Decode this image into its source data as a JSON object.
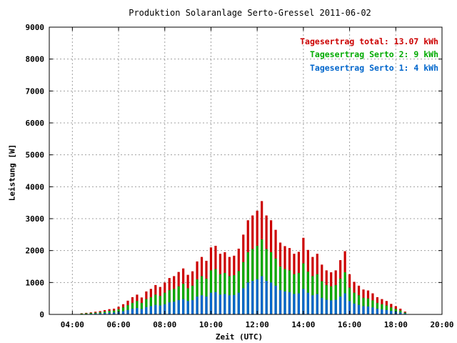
{
  "chart_data": {
    "type": "bar",
    "title": "Produktion Solaranlage Serto-Gressel 2011-06-02",
    "xlabel": "Zeit (UTC)",
    "ylabel": "Leistung [W]",
    "xlim": [
      3.0,
      20.0
    ],
    "ylim": [
      0,
      9000
    ],
    "yticks": [
      "0",
      "1000",
      "2000",
      "3000",
      "4000",
      "5000",
      "6000",
      "7000",
      "8000",
      "9000"
    ],
    "xticks": [
      "04:00",
      "06:00",
      "08:00",
      "10:00",
      "12:00",
      "14:00",
      "16:00",
      "18:00",
      "20:00"
    ],
    "grid": true,
    "legend_position": "top-right",
    "legend": [
      {
        "label": "Tagesertrag total: 13.07 kWh",
        "color": "#cc0000"
      },
      {
        "label": "Tagesertrag Serto 2: 9 kWh",
        "color": "#00aa00"
      },
      {
        "label": "Tagesertrag Serto 1: 4 kWh",
        "color": "#0066cc"
      }
    ],
    "series": [
      {
        "color": "#0066cc",
        "x": [
          4.4,
          4.6,
          4.8,
          5.0,
          5.2,
          5.4,
          5.6,
          5.8,
          6.0,
          6.2,
          6.4,
          6.6,
          6.8,
          7.0,
          7.2,
          7.4,
          7.6,
          7.8,
          8.0,
          8.2,
          8.4,
          8.6,
          8.8,
          9.0,
          9.2,
          9.4,
          9.6,
          9.8,
          10.0,
          10.2,
          10.4,
          10.6,
          10.8,
          11.0,
          11.2,
          11.4,
          11.6,
          11.8,
          12.0,
          12.2,
          12.4,
          12.6,
          12.8,
          13.0,
          13.2,
          13.4,
          13.6,
          13.8,
          14.0,
          14.2,
          14.4,
          14.6,
          14.8,
          15.0,
          15.2,
          15.4,
          15.6,
          15.8,
          16.0,
          16.2,
          16.4,
          16.6,
          16.8,
          17.0,
          17.2,
          17.4,
          17.6,
          17.8,
          18.0,
          18.2,
          18.4
        ],
        "values": [
          10,
          15,
          20,
          28,
          35,
          45,
          55,
          60,
          80,
          100,
          140,
          180,
          200,
          170,
          230,
          260,
          300,
          280,
          320,
          380,
          400,
          450,
          480,
          420,
          450,
          560,
          600,
          560,
          680,
          700,
          620,
          640,
          600,
          610,
          680,
          820,
          1000,
          1050,
          1100,
          1200,
          1050,
          1000,
          900,
          760,
          720,
          700,
          640,
          660,
          800,
          680,
          600,
          640,
          520,
          460,
          440,
          460,
          560,
          660,
          420,
          340,
          300,
          260,
          250,
          220,
          180,
          160,
          140,
          110,
          90,
          60,
          30
        ]
      },
      {
        "color": "#00aa00",
        "x": [
          4.4,
          4.6,
          4.8,
          5.0,
          5.2,
          5.4,
          5.6,
          5.8,
          6.0,
          6.2,
          6.4,
          6.6,
          6.8,
          7.0,
          7.2,
          7.4,
          7.6,
          7.8,
          8.0,
          8.2,
          8.4,
          8.6,
          8.8,
          9.0,
          9.2,
          9.4,
          9.6,
          9.8,
          10.0,
          10.2,
          10.4,
          10.6,
          10.8,
          11.0,
          11.2,
          11.4,
          11.6,
          11.8,
          12.0,
          12.2,
          12.4,
          12.6,
          12.8,
          13.0,
          13.2,
          13.4,
          13.6,
          13.8,
          14.0,
          14.2,
          14.4,
          14.6,
          14.8,
          15.0,
          15.2,
          15.4,
          15.6,
          15.8,
          16.0,
          16.2,
          16.4,
          16.6,
          16.8,
          17.0,
          17.2,
          17.4,
          17.6,
          17.8,
          18.0,
          18.2,
          18.4
        ],
        "values": [
          25,
          35,
          45,
          55,
          70,
          90,
          110,
          120,
          160,
          220,
          290,
          360,
          420,
          360,
          480,
          540,
          620,
          580,
          680,
          760,
          800,
          880,
          960,
          820,
          900,
          1100,
          1200,
          1120,
          1380,
          1420,
          1260,
          1300,
          1200,
          1230,
          1360,
          1640,
          1950,
          2050,
          2150,
          2350,
          2050,
          1950,
          1750,
          1500,
          1420,
          1380,
          1260,
          1300,
          1600,
          1340,
          1200,
          1260,
          1040,
          920,
          880,
          920,
          1120,
          1320,
          840,
          680,
          600,
          520,
          500,
          440,
          360,
          320,
          280,
          220,
          170,
          120,
          60
        ]
      },
      {
        "color": "#cc0000",
        "x": [
          4.4,
          4.6,
          4.8,
          5.0,
          5.2,
          5.4,
          5.6,
          5.8,
          6.0,
          6.2,
          6.4,
          6.6,
          6.8,
          7.0,
          7.2,
          7.4,
          7.6,
          7.8,
          8.0,
          8.2,
          8.4,
          8.6,
          8.8,
          9.0,
          9.2,
          9.4,
          9.6,
          9.8,
          10.0,
          10.2,
          10.4,
          10.6,
          10.8,
          11.0,
          11.2,
          11.4,
          11.6,
          11.8,
          12.0,
          12.2,
          12.4,
          12.6,
          12.8,
          13.0,
          13.2,
          13.4,
          13.6,
          13.8,
          14.0,
          14.2,
          14.4,
          14.6,
          14.8,
          15.0,
          15.2,
          15.4,
          15.6,
          15.8,
          16.0,
          16.2,
          16.4,
          16.6,
          16.8,
          17.0,
          17.2,
          17.4,
          17.6,
          17.8,
          18.0,
          18.2,
          18.4
        ],
        "values": [
          35,
          50,
          65,
          85,
          105,
          135,
          165,
          180,
          240,
          320,
          430,
          540,
          620,
          530,
          720,
          800,
          920,
          860,
          1000,
          1140,
          1200,
          1330,
          1440,
          1240,
          1350,
          1660,
          1800,
          1680,
          2100,
          2150,
          1900,
          1950,
          1800,
          1840,
          2060,
          2500,
          2950,
          3100,
          3250,
          3550,
          3100,
          2950,
          2650,
          2250,
          2140,
          2080,
          1900,
          1960,
          2400,
          2020,
          1800,
          1900,
          1560,
          1380,
          1320,
          1380,
          1700,
          1980,
          1260,
          1020,
          900,
          780,
          750,
          660,
          540,
          480,
          420,
          330,
          260,
          180,
          90
        ]
      }
    ]
  }
}
